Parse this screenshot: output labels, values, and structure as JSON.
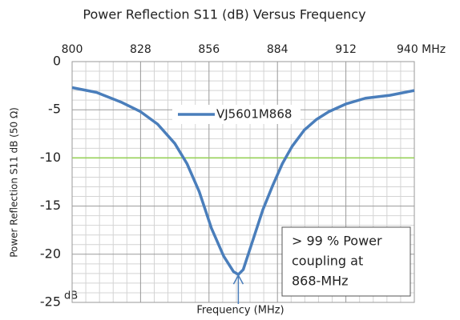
{
  "chart_data": {
    "type": "line",
    "title": "Power Reflection S11  (dB) Versus Frequency",
    "xlabel": "Frequency (MHz)",
    "ylabel": "Power Reflection S11 dB (50 Ω)",
    "y_unit": "dB",
    "x": [
      800,
      810,
      820,
      828,
      835,
      842,
      847,
      852,
      857,
      862,
      866,
      868,
      870,
      874,
      878,
      882,
      886,
      890,
      895,
      900,
      905,
      912,
      920,
      930,
      940
    ],
    "series": [
      {
        "name": "VJ5601M868",
        "color": "#4a7ebb",
        "values": [
          -2.7,
          -3.2,
          -4.2,
          -5.2,
          -6.5,
          -8.5,
          -10.6,
          -13.5,
          -17.3,
          -20.2,
          -21.8,
          -22.1,
          -21.6,
          -18.5,
          -15.4,
          -12.9,
          -10.6,
          -8.8,
          -7.1,
          -6.0,
          -5.2,
          -4.4,
          -3.8,
          -3.5,
          -3.0
        ]
      }
    ],
    "xlim": [
      800,
      940
    ],
    "xticks": [
      800,
      828,
      856,
      884,
      912,
      {
        "value": 940,
        "label": "940 MHz"
      }
    ],
    "ylim": [
      -25,
      0
    ],
    "yticks": [
      0,
      -5,
      -10,
      -15,
      -20,
      -25
    ],
    "grid": true,
    "reference_line": {
      "value": -10,
      "color": "#92d050"
    },
    "annotation": [
      "> 99 % Power",
      "coupling at",
      "868-MHz"
    ]
  }
}
